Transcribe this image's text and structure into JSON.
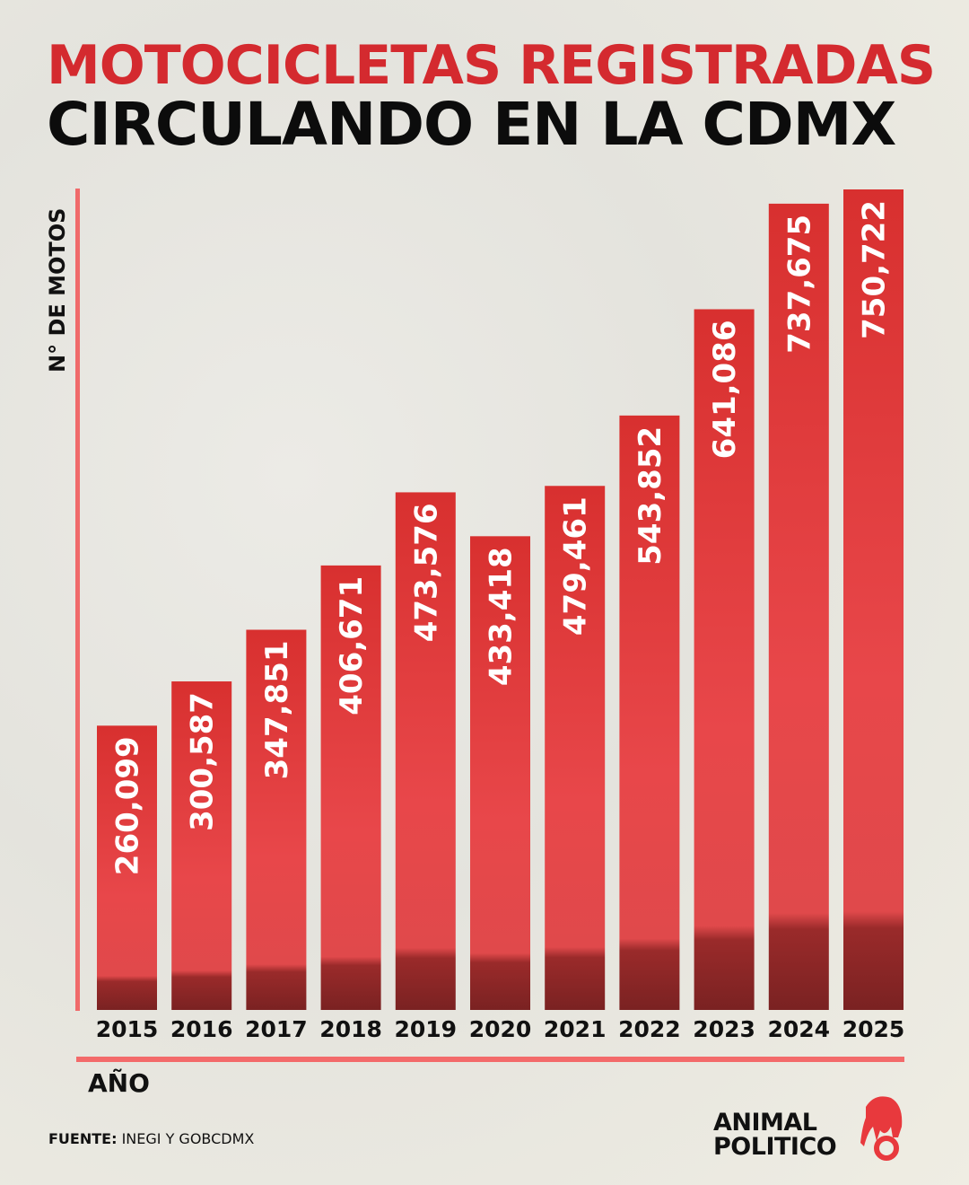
{
  "chart_data": {
    "type": "bar",
    "title": "MOTOCICLETAS REGISTRADAS",
    "subtitle": "CIRCULANDO EN LA CDMX",
    "xlabel": "AÑO",
    "ylabel": "N° DE MOTOS",
    "categories": [
      "2015",
      "2016",
      "2017",
      "2018",
      "2019",
      "2020",
      "2021",
      "2022",
      "2023",
      "2024",
      "2025"
    ],
    "values": [
      260099,
      300587,
      347851,
      406671,
      473576,
      433418,
      479461,
      543852,
      641086,
      737675,
      750722
    ],
    "data_labels": [
      "260,099",
      "300,587",
      "347,851",
      "406,671",
      "473,576",
      "433,418",
      "479,461",
      "543,852",
      "641,086",
      "737,675",
      "750,722"
    ],
    "ylim": [
      0,
      750722
    ],
    "grid": false,
    "colors": {
      "bar": "#e33a3e",
      "axis": "#f06a6a",
      "title": "#d42a2f"
    }
  },
  "source": {
    "label": "FUENTE:",
    "text": " INEGI Y GOBCDMX"
  },
  "logo": {
    "line1": "ANIMAL",
    "line2": "POLITICO"
  }
}
